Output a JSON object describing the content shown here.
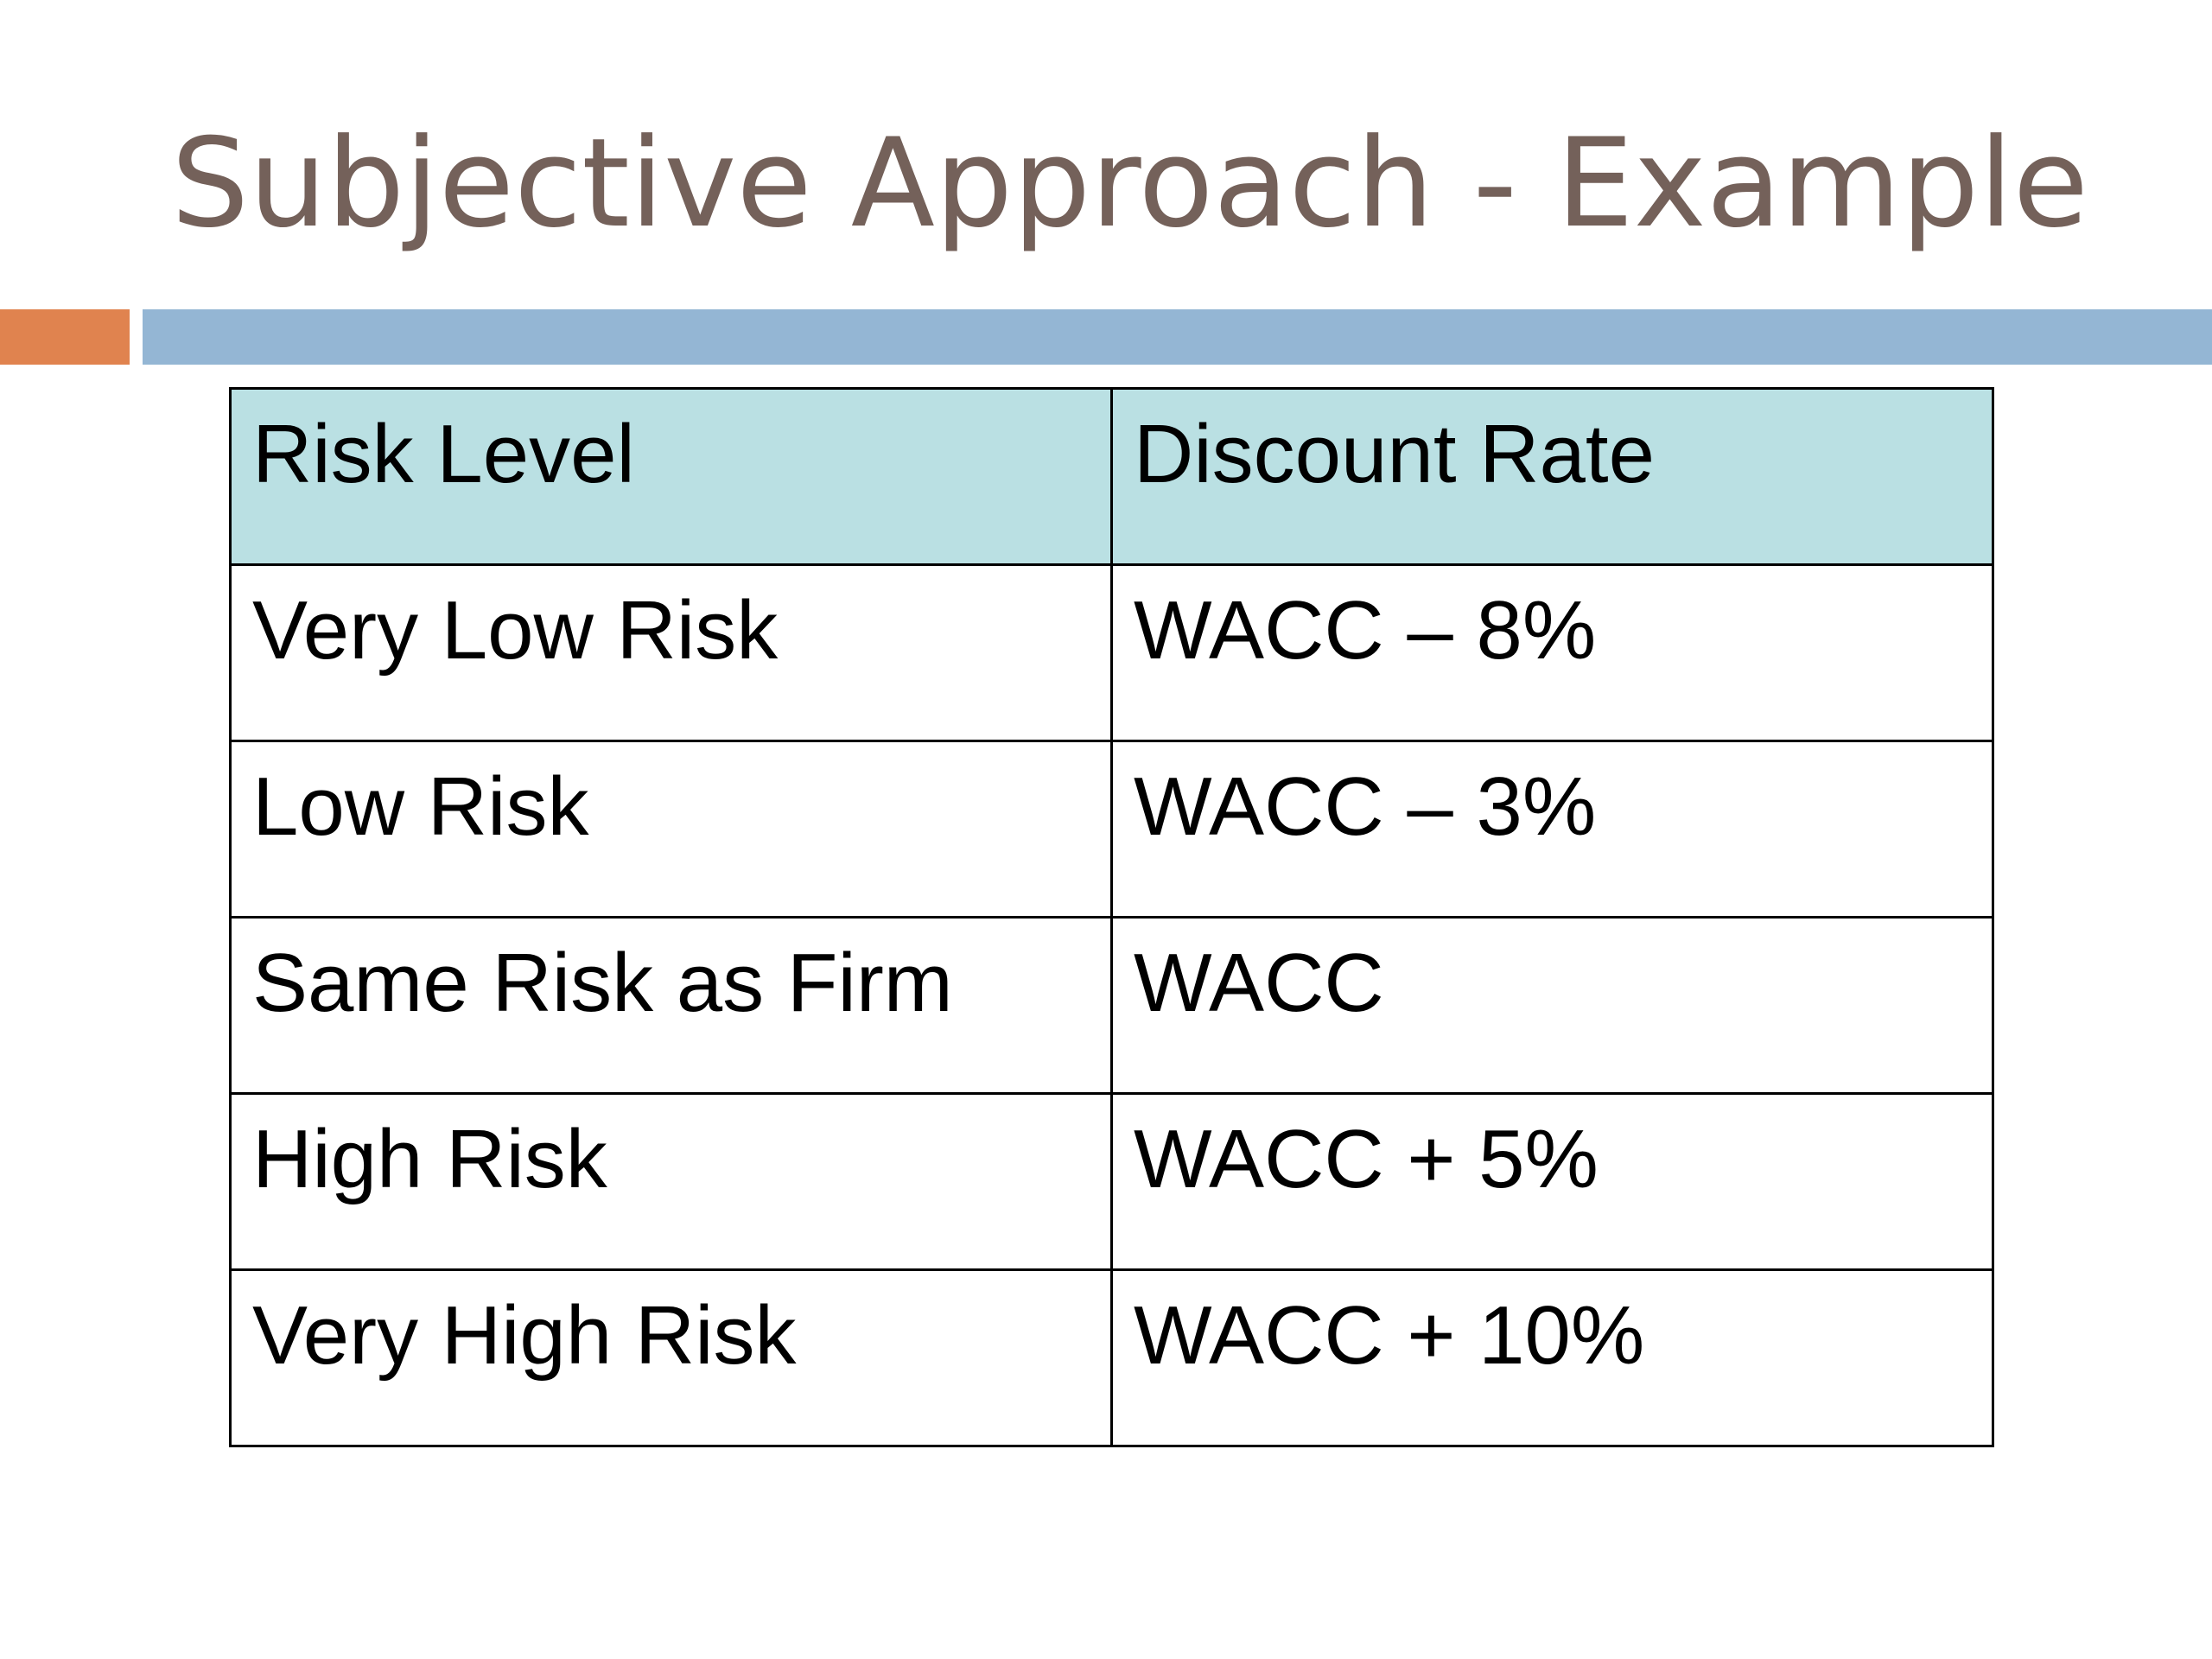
{
  "slide": {
    "title": "Subjective Approach - Example",
    "colors": {
      "title": "#74615a",
      "accent_orange": "#e0834f",
      "accent_blue": "#94b6d4",
      "header_fill": "#bae0e3"
    }
  },
  "table": {
    "headers": [
      "Risk Level",
      "Discount Rate"
    ],
    "rows": [
      [
        "Very Low Risk",
        "WACC – 8%"
      ],
      [
        "Low Risk",
        "WACC – 3%"
      ],
      [
        "Same Risk as Firm",
        "WACC"
      ],
      [
        "High Risk",
        "WACC + 5%"
      ],
      [
        "Very High Risk",
        "WACC + 10%"
      ]
    ]
  }
}
